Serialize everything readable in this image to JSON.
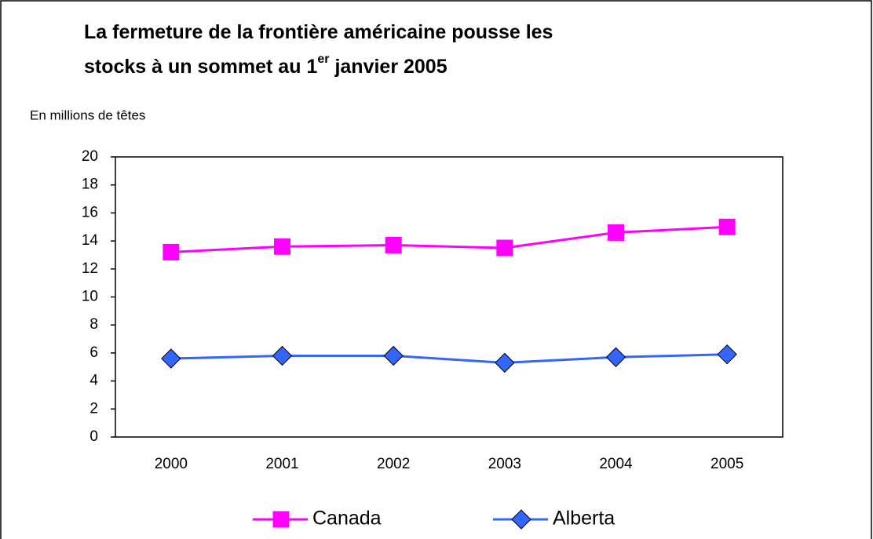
{
  "chart_data": {
    "type": "line",
    "title": [
      "La fermeture de la frontière américaine pousse les",
      "stocks à un sommet au 1",
      "er",
      "janvier 2005"
    ],
    "y_label": "En millions de têtes",
    "categories": [
      "2000",
      "2001",
      "2002",
      "2003",
      "2004",
      "2005"
    ],
    "series": [
      {
        "name": "Canada",
        "color": "#ff00ff",
        "marker": "square",
        "values": [
          13.2,
          13.6,
          13.7,
          13.5,
          14.6,
          15.0
        ]
      },
      {
        "name": "Alberta",
        "color": "#3366ff",
        "marker": "diamond",
        "values": [
          5.6,
          5.8,
          5.8,
          5.3,
          5.7,
          5.9
        ]
      }
    ],
    "ylim": [
      0,
      20
    ],
    "yticks": [
      0,
      2,
      4,
      6,
      8,
      10,
      12,
      14,
      16,
      18,
      20
    ],
    "legend": "bottom"
  }
}
